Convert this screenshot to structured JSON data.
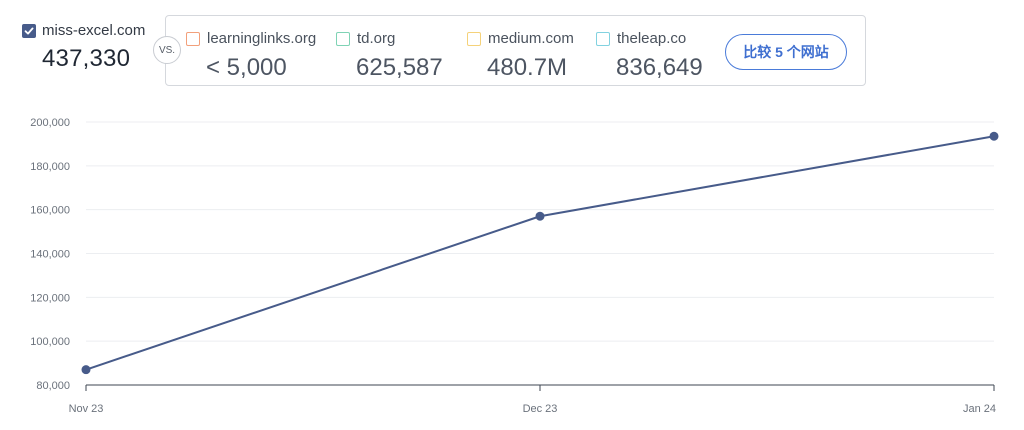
{
  "primary_site": {
    "name": "miss-excel.com",
    "value": "437,330",
    "checked": true,
    "color": "#475b8a"
  },
  "vs_label": "VS.",
  "competitors": [
    {
      "name": "learninglinks.org",
      "value": "< 5,000",
      "color": "#f2a07b"
    },
    {
      "name": "td.org",
      "value": "625,587",
      "color": "#7fd3b5"
    },
    {
      "name": "medium.com",
      "value": "480.7M",
      "color": "#f5d27a"
    },
    {
      "name": "theleap.co",
      "value": "836,649",
      "color": "#82d2e0"
    }
  ],
  "compare_button_label": "比较 5 个网站",
  "chart_data": {
    "type": "line",
    "categories": [
      "Nov 23",
      "Dec 23",
      "Jan 24"
    ],
    "series": [
      {
        "values": [
          87000,
          157000,
          193500
        ],
        "color": "#475b8a"
      }
    ],
    "yticks": [
      80000,
      100000,
      120000,
      140000,
      160000,
      180000,
      200000
    ],
    "ytick_labels": [
      "80,000",
      "100,000",
      "120,000",
      "140,000",
      "160,000",
      "180,000",
      "200,000"
    ],
    "ylim": [
      80000,
      200000
    ],
    "grid": true,
    "legend": "none"
  }
}
